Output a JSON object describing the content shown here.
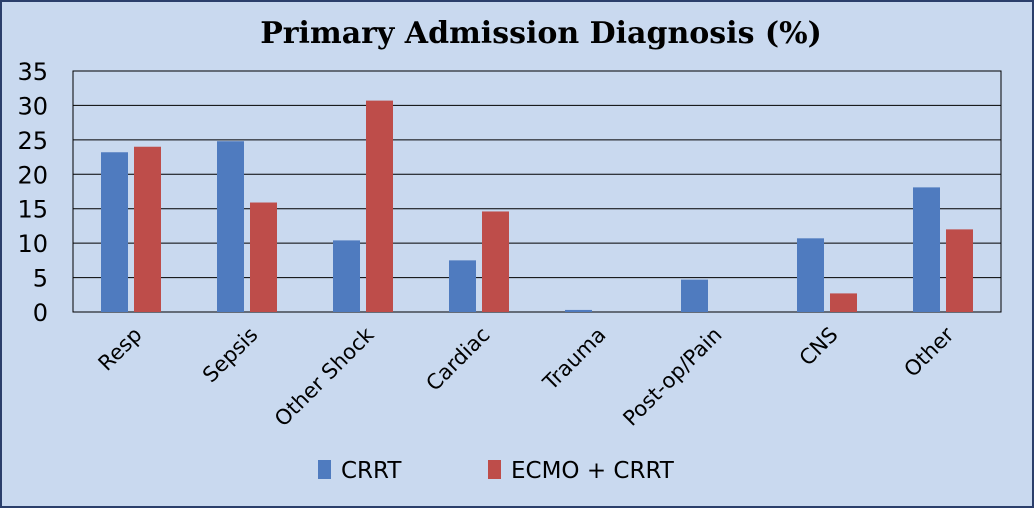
{
  "chart_data": {
    "type": "bar",
    "title": "Primary Admission Diagnosis (%)",
    "xlabel": "",
    "ylabel": "",
    "ylim": [
      0,
      35
    ],
    "yticks": [
      0,
      5,
      10,
      15,
      20,
      25,
      30,
      35
    ],
    "grid": true,
    "legend_position": "bottom",
    "categories": [
      "Resp",
      "Sepsis",
      "Other Shock",
      "Cardiac",
      "Trauma",
      "Post-op/Pain",
      "CNS",
      "Other"
    ],
    "series": [
      {
        "name": "CRRT",
        "color": "#4f7bbf",
        "values": [
          23.2,
          24.8,
          10.4,
          7.5,
          0.3,
          4.7,
          10.7,
          18.1
        ]
      },
      {
        "name": "ECMO + CRRT",
        "color": "#be4d4a",
        "values": [
          24.0,
          15.9,
          30.7,
          14.6,
          0,
          0,
          2.7,
          12.0
        ]
      }
    ]
  }
}
